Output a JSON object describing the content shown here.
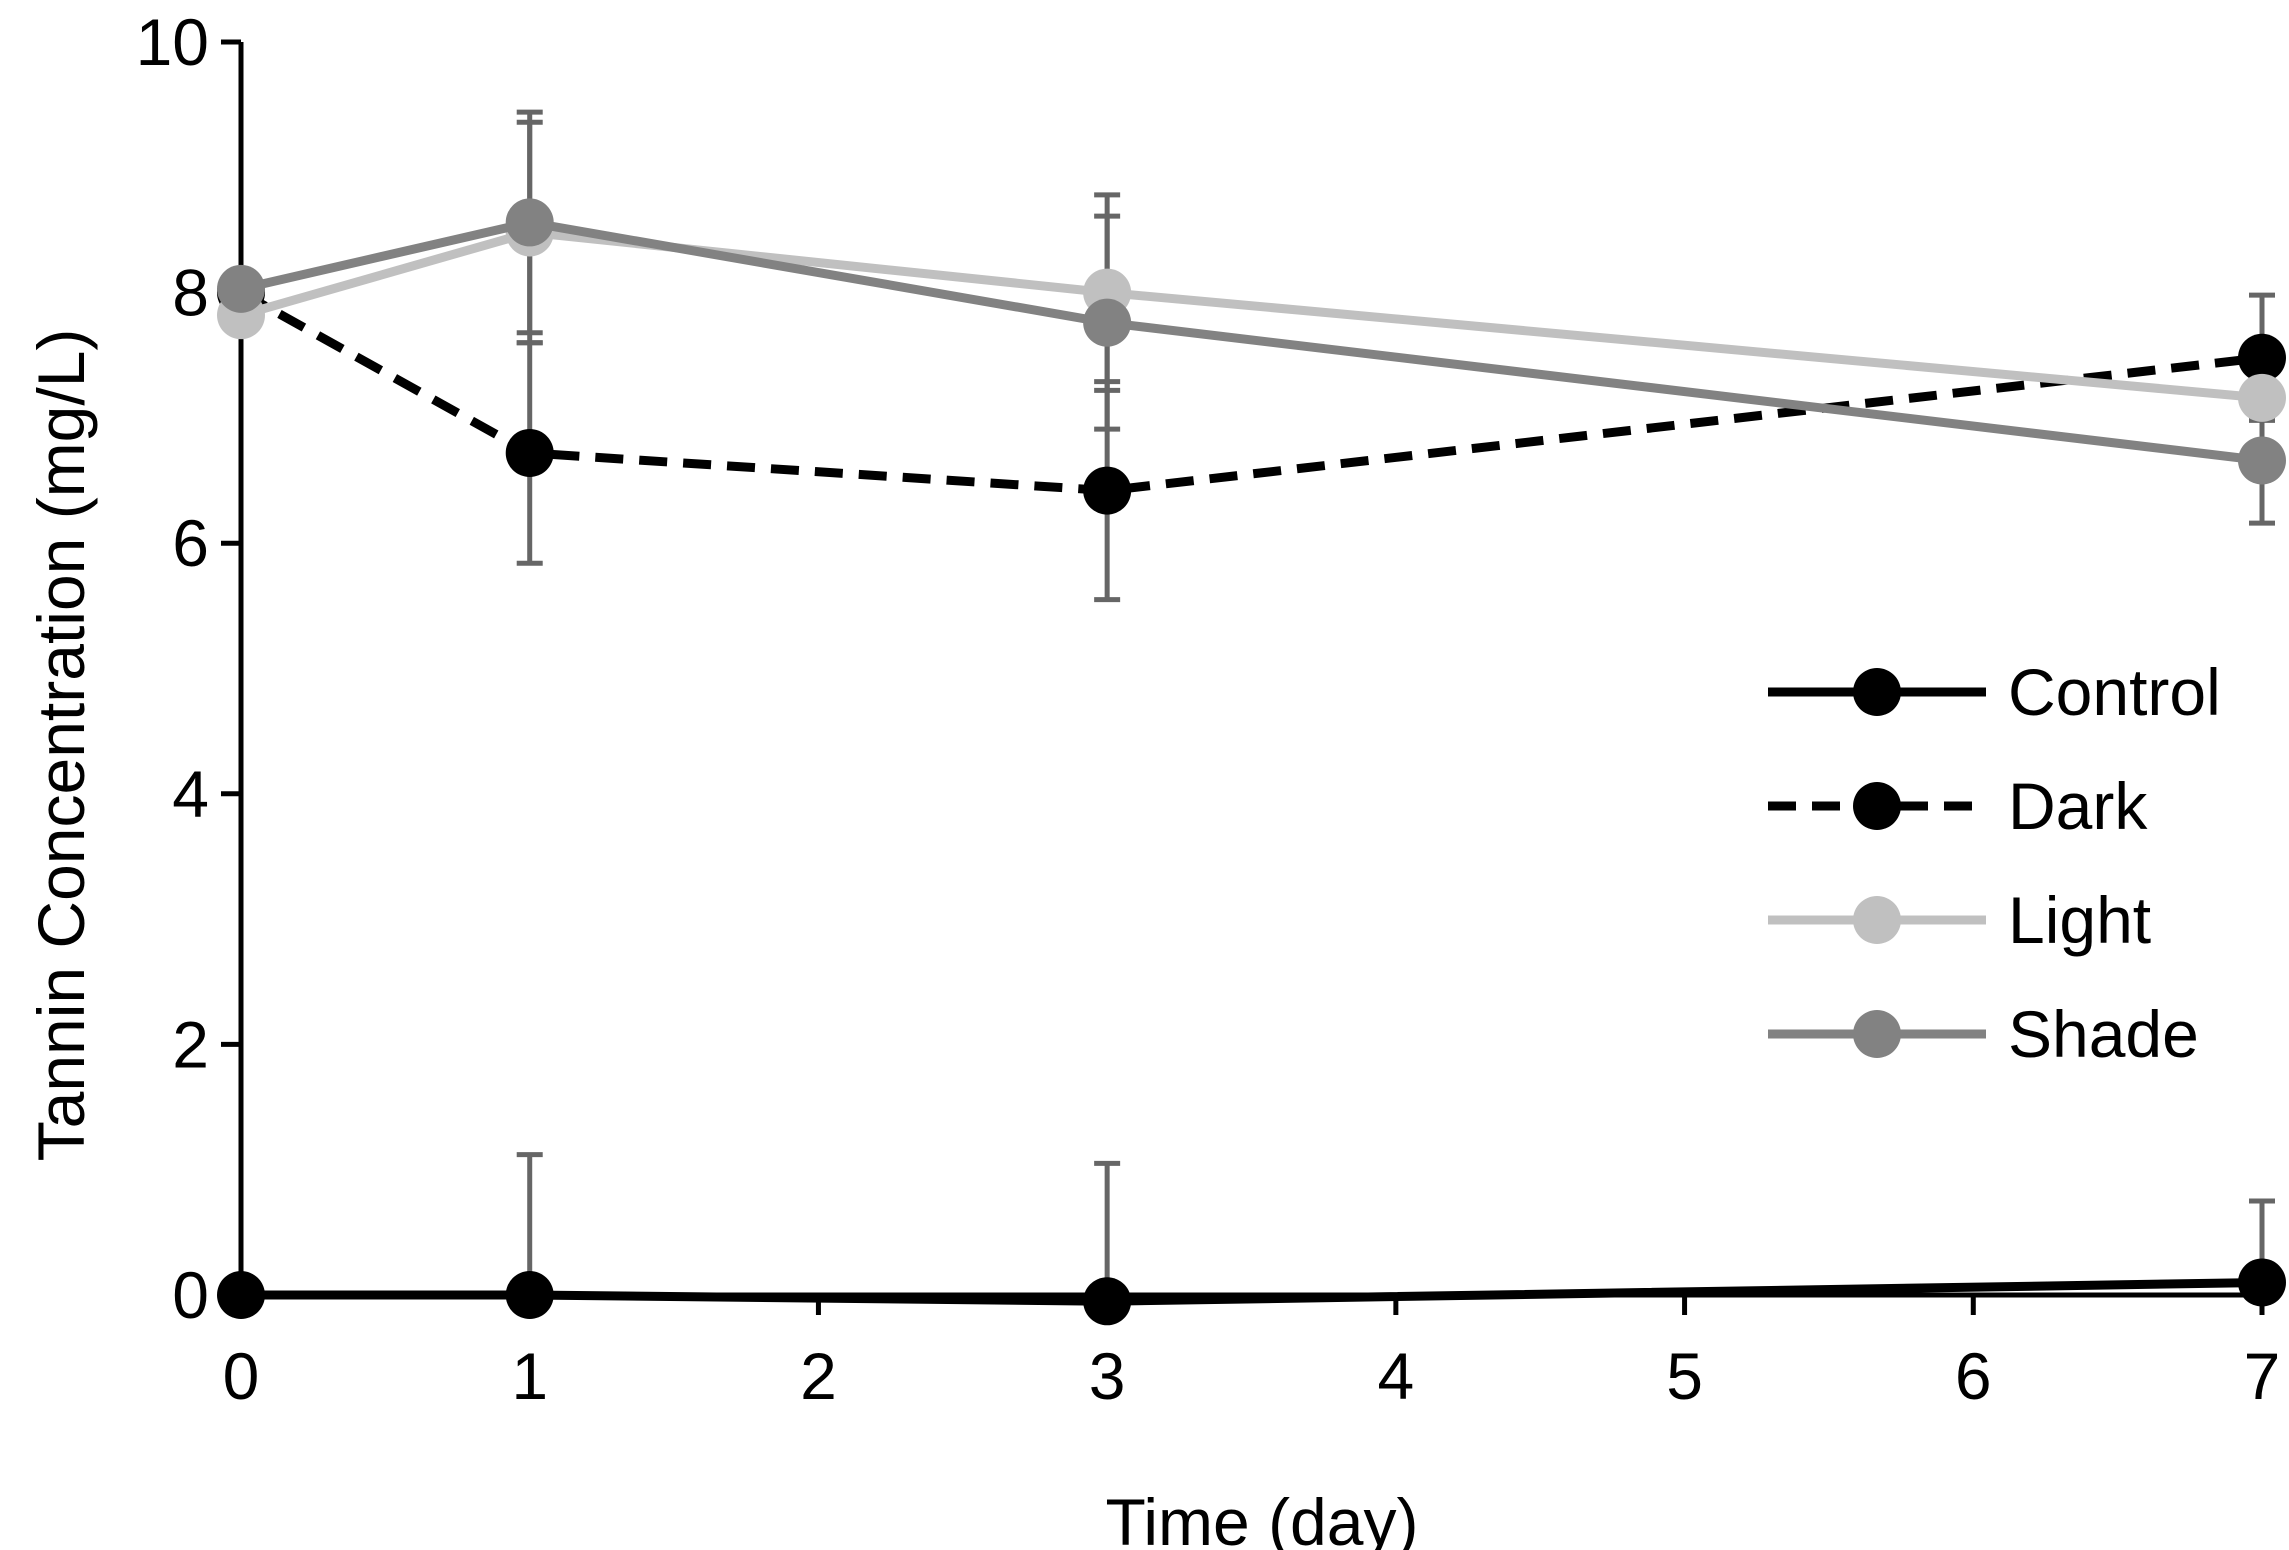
{
  "chart_data": {
    "type": "line",
    "title": "",
    "xlabel": "Time (day)",
    "ylabel": "Tannin Concentration (mg/L)",
    "xlim": [
      0,
      7
    ],
    "ylim": [
      0,
      10
    ],
    "xticks": [
      "0",
      "1",
      "2",
      "3",
      "4",
      "5",
      "6",
      "7"
    ],
    "yticks": [
      "0",
      "2",
      "4",
      "6",
      "8",
      "10"
    ],
    "grid": false,
    "legend_position": "right",
    "series": [
      {
        "name": "Control",
        "x": [
          0,
          1,
          3,
          7
        ],
        "values": [
          0.0,
          0.0,
          -0.05,
          0.1
        ],
        "error": [
          0,
          1.12,
          1.1,
          0.65
        ],
        "color": "#000000",
        "dashed": false
      },
      {
        "name": "Dark",
        "x": [
          0,
          1,
          3,
          7
        ],
        "values": [
          8.0,
          6.72,
          6.42,
          7.48
        ],
        "error": [
          0,
          0.88,
          0.87,
          0.5
        ],
        "color": "#000000",
        "dashed": true
      },
      {
        "name": "Light",
        "x": [
          0,
          1,
          3,
          7
        ],
        "values": [
          7.82,
          8.48,
          8.0,
          7.16
        ],
        "error": [
          0,
          0.88,
          0.78,
          0.38
        ],
        "color": "#c0c0c0",
        "dashed": false
      },
      {
        "name": "Shade",
        "x": [
          0,
          1,
          3,
          7
        ],
        "values": [
          8.03,
          8.56,
          7.76,
          6.66
        ],
        "error": [
          0,
          0.88,
          0.85,
          0.5
        ],
        "color": "#828282",
        "dashed": false
      }
    ],
    "errorbar_color": "#666666"
  }
}
